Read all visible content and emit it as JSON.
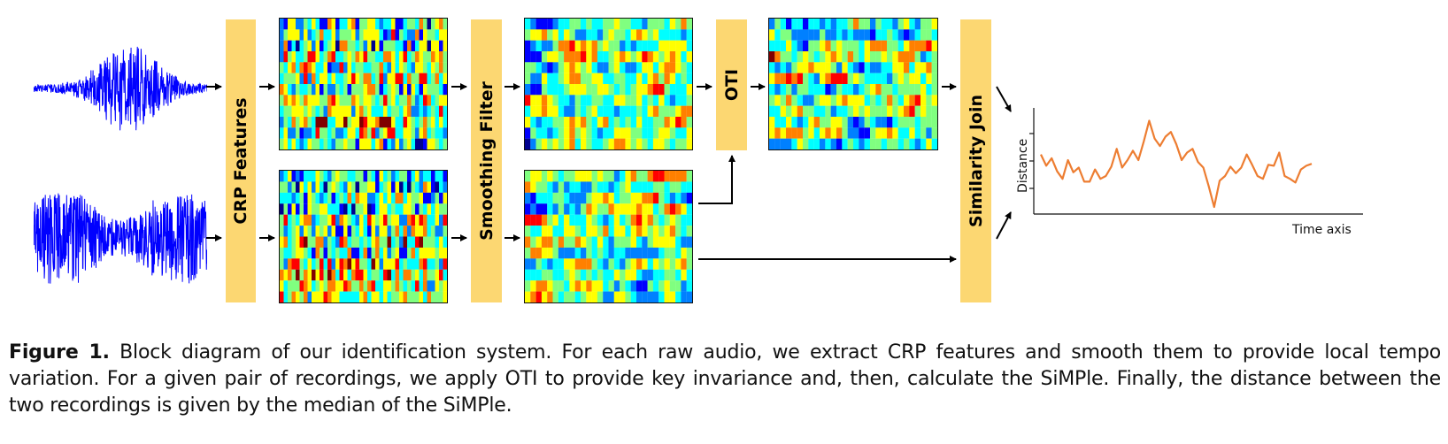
{
  "blocks": {
    "crp": "CRP Features",
    "smoothing": "Smoothing Filter",
    "oti": "OTI",
    "similarity": "Similarity Join"
  },
  "plot": {
    "ylabel": "Distance",
    "xlabel": "Time axis",
    "line_color": "#ed7d31",
    "series": [
      0.56,
      0.44,
      0.52,
      0.38,
      0.3,
      0.5,
      0.37,
      0.42,
      0.27,
      0.27,
      0.4,
      0.3,
      0.33,
      0.43,
      0.62,
      0.42,
      0.5,
      0.6,
      0.5,
      0.7,
      0.92,
      0.73,
      0.65,
      0.75,
      0.8,
      0.67,
      0.5,
      0.58,
      0.62,
      0.48,
      0.42,
      0.22,
      0.0,
      0.28,
      0.33,
      0.43,
      0.36,
      0.42,
      0.56,
      0.45,
      0.33,
      0.3,
      0.45,
      0.44,
      0.58,
      0.33,
      0.3,
      0.26,
      0.4,
      0.44,
      0.46
    ]
  },
  "colors": {
    "block": "#fcd772",
    "waveform": "#0000ff",
    "arrow": "#000000",
    "heatmap_palette": [
      "#00008f",
      "#0000ff",
      "#0080ff",
      "#00ffff",
      "#80ff80",
      "#ffff00",
      "#ff8000",
      "#ff0000",
      "#800000"
    ]
  },
  "caption": {
    "label": "Figure 1.",
    "text": " Block diagram of our identification system. For each raw audio, we extract CRP features and smooth them to provide local tempo variation. For a given pair of recordings, we apply OTI to provide key invariance and, then, calculate the SiMPle. Finally, the distance between the two recordings is given by the median of the SiMPle."
  }
}
